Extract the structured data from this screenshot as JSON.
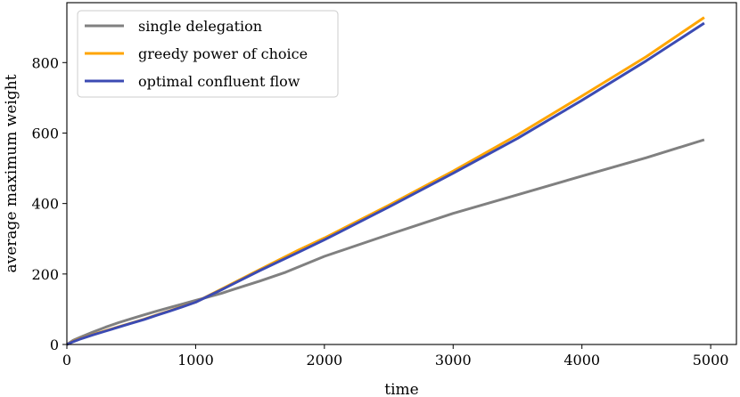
{
  "chart_data": {
    "type": "line",
    "title": "",
    "xlabel": "time",
    "ylabel": "average maximum weight",
    "xlim": [
      0,
      5200
    ],
    "ylim": [
      0,
      970
    ],
    "xticks": [
      0,
      1000,
      2000,
      3000,
      4000,
      5000
    ],
    "xtick_labels": [
      "0",
      "1000",
      "2000",
      "3000",
      "4000",
      "5000"
    ],
    "yticks": [
      0,
      200,
      400,
      600,
      800
    ],
    "ytick_labels": [
      "0",
      "200",
      "400",
      "600",
      "800"
    ],
    "grid": false,
    "legend_position": "top-left",
    "series": [
      {
        "name": "single delegation",
        "color": "#808080",
        "x": [
          0,
          50,
          100,
          200,
          300,
          400,
          500,
          600,
          700,
          800,
          900,
          1000,
          1100,
          1200,
          1300,
          1500,
          1700,
          2000,
          2500,
          3000,
          3500,
          4000,
          4500,
          4950
        ],
        "y": [
          0,
          12,
          20,
          35,
          49,
          62,
          73,
          84,
          95,
          105,
          115,
          125,
          135,
          145,
          157,
          180,
          205,
          250,
          312,
          372,
          425,
          478,
          530,
          581
        ]
      },
      {
        "name": "greedy power of choice",
        "color": "#FFA500",
        "x": [
          0,
          50,
          100,
          200,
          300,
          400,
          500,
          600,
          700,
          800,
          900,
          1000,
          1200,
          1500,
          1800,
          2000,
          2500,
          3000,
          3500,
          4000,
          4500,
          4950
        ],
        "y": [
          0,
          9,
          16,
          28,
          39,
          50,
          61,
          72,
          84,
          96,
          108,
          120,
          157,
          213,
          268,
          302,
          395,
          492,
          595,
          705,
          817,
          928
        ]
      },
      {
        "name": "optimal confluent flow",
        "color": "#3C4BB3",
        "x": [
          0,
          50,
          100,
          200,
          300,
          400,
          500,
          600,
          700,
          800,
          900,
          1000,
          1200,
          1500,
          1800,
          2000,
          2500,
          3000,
          3500,
          4000,
          4500,
          4950
        ],
        "y": [
          0,
          8,
          15,
          27,
          38,
          49,
          60,
          71,
          83,
          95,
          107,
          120,
          155,
          210,
          262,
          297,
          390,
          486,
          585,
          693,
          805,
          912
        ]
      }
    ]
  }
}
